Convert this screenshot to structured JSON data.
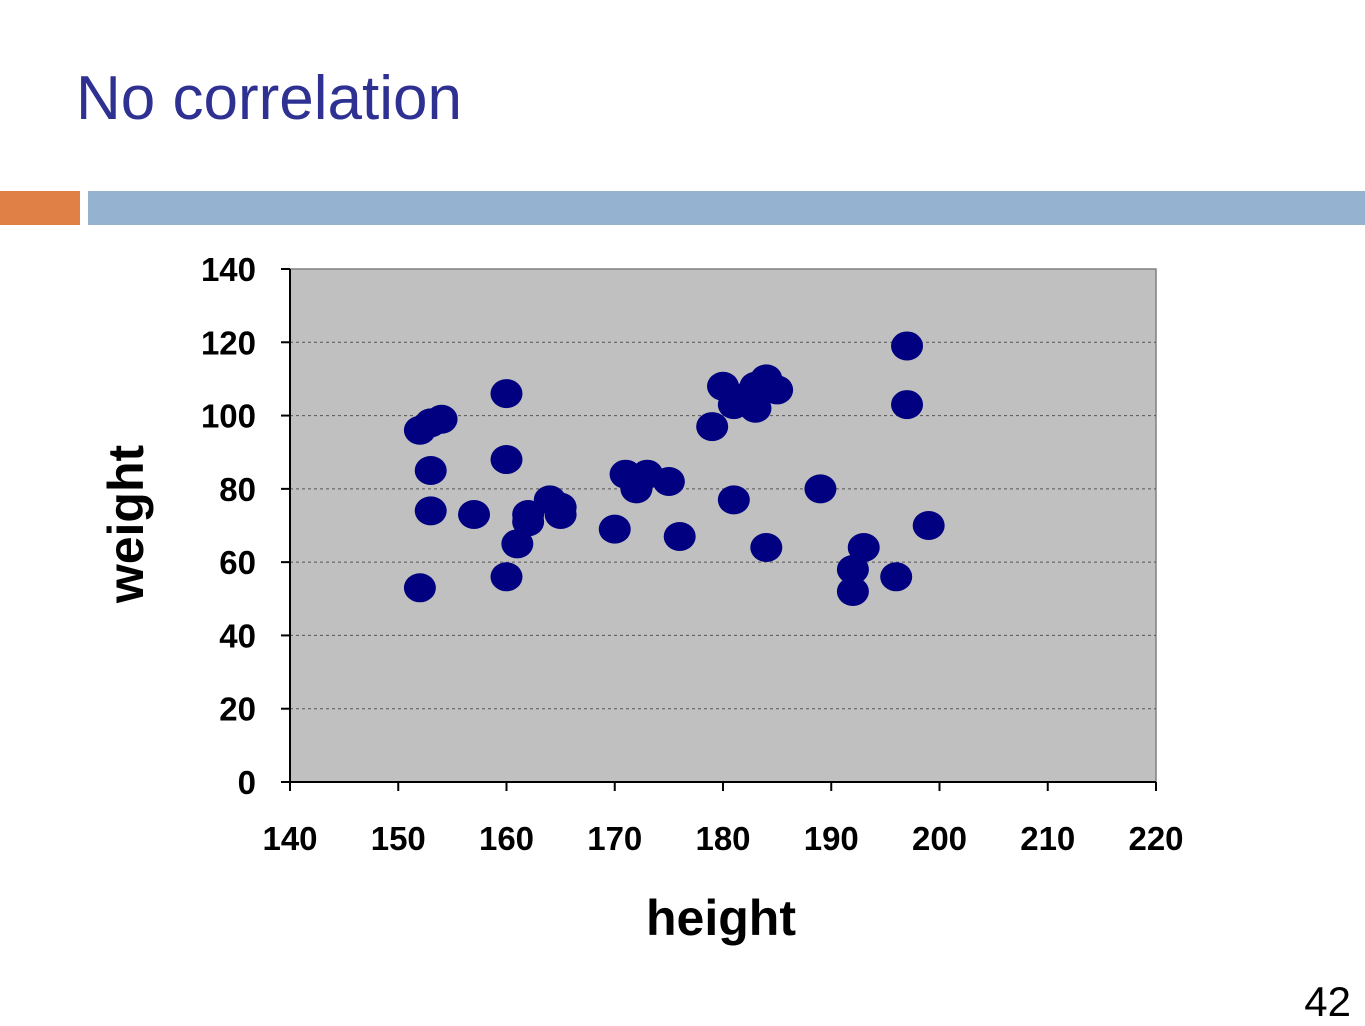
{
  "slide": {
    "title": "No correlation",
    "page_number": "42"
  },
  "colors": {
    "title": "#2e3192",
    "accent_orange": "#e07f46",
    "accent_blue": "#95b3d0",
    "plot_background": "#c0c0c0",
    "marker": "#000080",
    "grid": "#808080"
  },
  "chart_data": {
    "type": "scatter",
    "title": "",
    "xlabel": "height",
    "ylabel": "weight",
    "xlim": [
      140,
      220
    ],
    "ylim": [
      0,
      140
    ],
    "x_ticks": [
      140,
      150,
      160,
      170,
      180,
      190,
      200,
      210,
      220
    ],
    "y_ticks": [
      0,
      20,
      40,
      60,
      80,
      100,
      120,
      140
    ],
    "grid": "horizontal dashed",
    "legend": "none",
    "points": [
      [
        152,
        96
      ],
      [
        153,
        98
      ],
      [
        154,
        99
      ],
      [
        153,
        85
      ],
      [
        153,
        74
      ],
      [
        152,
        53
      ],
      [
        157,
        73
      ],
      [
        160,
        106
      ],
      [
        160,
        88
      ],
      [
        160,
        56
      ],
      [
        161,
        65
      ],
      [
        162,
        73
      ],
      [
        162,
        71
      ],
      [
        164,
        77
      ],
      [
        165,
        75
      ],
      [
        165,
        73
      ],
      [
        170,
        69
      ],
      [
        171,
        84
      ],
      [
        172,
        80
      ],
      [
        173,
        84
      ],
      [
        175,
        82
      ],
      [
        176,
        67
      ],
      [
        179,
        97
      ],
      [
        180,
        108
      ],
      [
        181,
        103
      ],
      [
        182,
        105
      ],
      [
        183,
        108
      ],
      [
        183,
        102
      ],
      [
        184,
        110
      ],
      [
        185,
        107
      ],
      [
        181,
        77
      ],
      [
        184,
        64
      ],
      [
        189,
        80
      ],
      [
        192,
        58
      ],
      [
        192,
        52
      ],
      [
        193,
        64
      ],
      [
        196,
        56
      ],
      [
        197,
        119
      ],
      [
        197,
        103
      ],
      [
        199,
        70
      ]
    ]
  }
}
